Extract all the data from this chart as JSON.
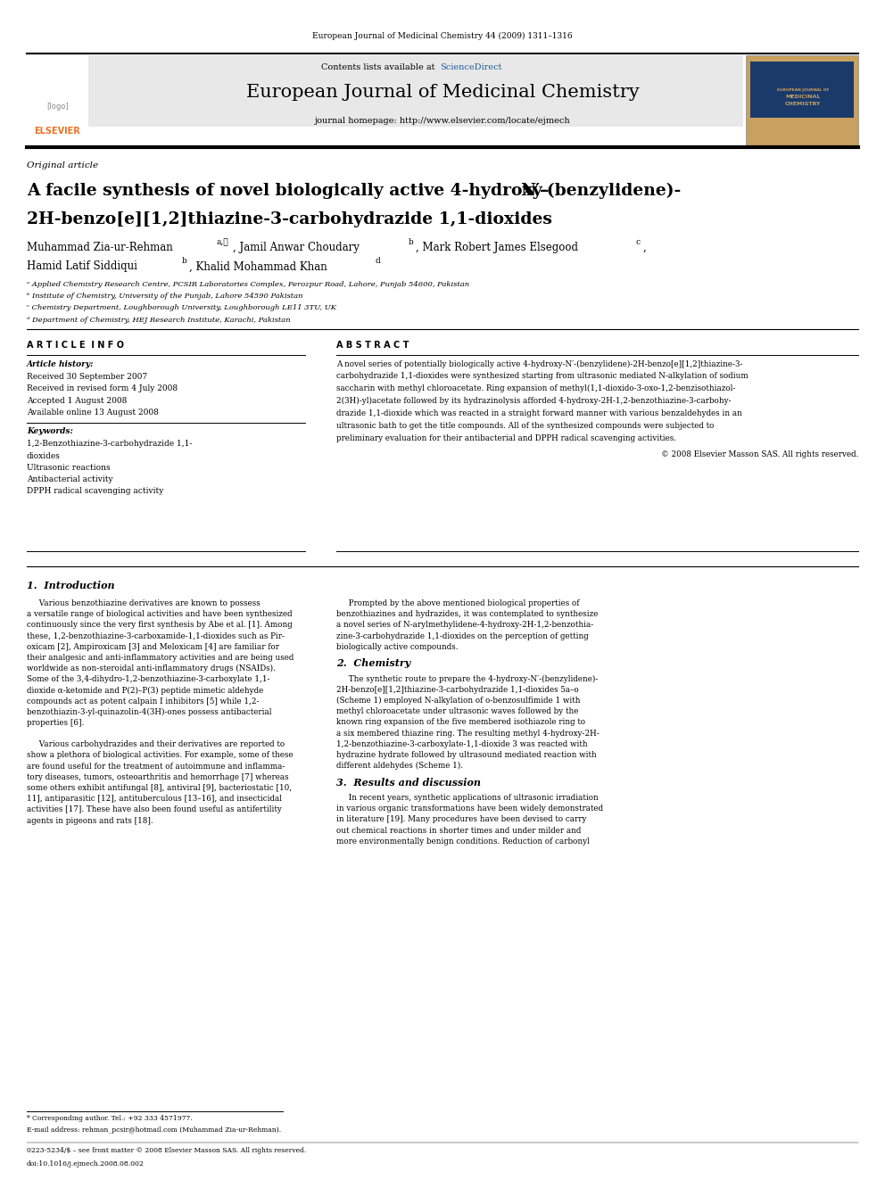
{
  "page_width": 9.92,
  "page_height": 13.23,
  "bg_color": "#ffffff",
  "top_journal_ref": "European Journal of Medicinal Chemistry 44 (2009) 1311–1316",
  "journal_name": "European Journal of Medicinal Chemistry",
  "journal_homepage": "journal homepage: http://www.elsevier.com/locate/ejmech",
  "contents_line": "Contents lists available at ScienceDirect",
  "science_direct_color": "#1f5da0",
  "elsevier_color": "#f07020",
  "article_type": "Original article",
  "affil_a": "ᵃ Applied Chemistry Research Centre, PCSIR Laboratories Complex, Ferozpur Road, Lahore, Punjab 54600, Pakistan",
  "affil_b": "ᵇ Institute of Chemistry, University of the Punjab, Lahore 54590 Pakistan",
  "affil_c": "ᶜ Chemistry Department, Loughborough University, Loughborough LE11 3TU, UK",
  "affil_d": "ᵈ Department of Chemistry, HEJ Research Institute, Karachi, Pakistan",
  "article_info_header": "A R T I C L E  I N F O",
  "abstract_header": "A B S T R A C T",
  "article_history_label": "Article history:",
  "received": "Received 30 September 2007",
  "received_revised": "Received in revised form 4 July 2008",
  "accepted": "Accepted 1 August 2008",
  "available": "Available online 13 August 2008",
  "keywords_label": "Keywords:",
  "keyword1a": "1,2-Benzothiazine-3-carbohydrazide 1,1-",
  "keyword1b": "dioxides",
  "keyword2": "Ultrasonic reactions",
  "keyword3": "Antibacterial activity",
  "keyword4": "DPPH radical scavenging activity",
  "copyright": "© 2008 Elsevier Masson SAS. All rights reserved.",
  "section1_title": "1.  Introduction",
  "section2_title": "2.  Chemistry",
  "section3_title": "3.  Results and discussion",
  "footnote_star": "* Corresponding author. Tel.: +92 333 4571977.",
  "footnote_email": "E-mail address: rehman_pcsir@hotmail.com (Muhammad Zia-ur-Rehman).",
  "footnote_issn": "0223-5234/$ – see front matter © 2008 Elsevier Masson SAS. All rights reserved.",
  "footnote_doi": "doi:10.1016/j.ejmech.2008.08.002"
}
